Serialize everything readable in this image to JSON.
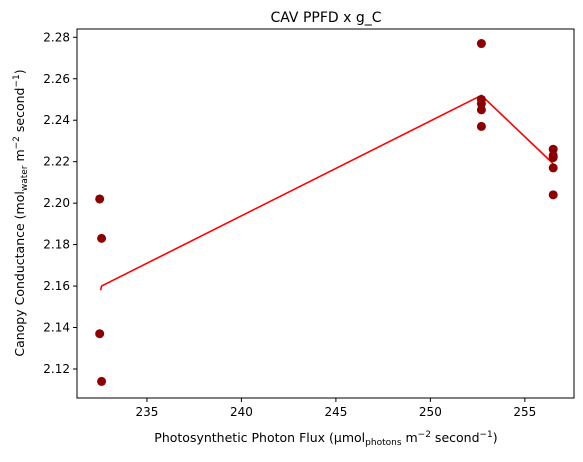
{
  "chart_data": {
    "type": "scatter",
    "title": "CAV PPFD x g_C",
    "xlabel": {
      "prefix": "Photosynthetic Photon Flux (µmol",
      "sub": "photons",
      "mid": " m",
      "sup1": "−2",
      "mid2": " second",
      "sup2": "−1",
      "suffix": ")"
    },
    "ylabel": {
      "prefix": "Canopy Conductance (mol",
      "sub": "water",
      "mid": " m",
      "sup1": "−2",
      "mid2": " second",
      "sup2": "−1",
      "suffix": ")"
    },
    "xlim": [
      231.3,
      257.6
    ],
    "ylim": [
      2.106,
      2.284
    ],
    "xticks": [
      235,
      240,
      245,
      250,
      255
    ],
    "yticks": [
      2.12,
      2.14,
      2.16,
      2.18,
      2.2,
      2.22,
      2.24,
      2.26,
      2.28
    ],
    "xtick_labels": [
      "235",
      "240",
      "245",
      "250",
      "255"
    ],
    "ytick_labels": [
      "2.12",
      "2.14",
      "2.16",
      "2.18",
      "2.20",
      "2.22",
      "2.24",
      "2.26",
      "2.28"
    ],
    "grid": false,
    "series": [
      {
        "kind": "points",
        "color": "#8b0000",
        "x": [
          232.5,
          232.6,
          232.5,
          232.6,
          252.7,
          252.7,
          252.7,
          252.7,
          252.7,
          256.5,
          256.5,
          256.5,
          256.5,
          256.5
        ],
        "y": [
          2.202,
          2.183,
          2.137,
          2.114,
          2.277,
          2.25,
          2.248,
          2.245,
          2.237,
          2.226,
          2.223,
          2.222,
          2.217,
          2.204
        ]
      },
      {
        "kind": "line",
        "color": "#ff0000",
        "x": [
          232.55,
          232.6,
          252.7,
          256.5
        ],
        "y": [
          2.158,
          2.16,
          2.252,
          2.219
        ]
      }
    ]
  }
}
